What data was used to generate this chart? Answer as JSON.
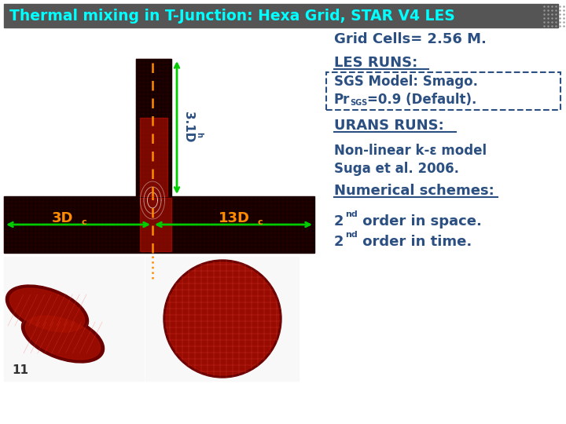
{
  "title": "Thermal mixing in T-Junction: Hexa Grid, STAR V4 LES",
  "title_color": "#00FFFF",
  "title_bg": "#555555",
  "bg_color": "#FFFFFF",
  "grid_cells_text": "Grid Cells= 2.56 M.",
  "les_runs_text": "LES RUNS:",
  "sgs_line1": "SGS Model: Smago.",
  "sgs_line2b": "=0.9 (Default).",
  "urans_text": "URANS RUNS:",
  "nonlinear_line1": "Non-linear k-ε model",
  "nonlinear_line2": "Suga et al. 2006.",
  "numerical_text": "Numerical schemes:",
  "order_sup": "nd",
  "order_end1": " order in space.",
  "order_end2": " order in time.",
  "label_3Dc": "3D",
  "label_3Dc_sub": "c",
  "label_13Dc": "13D",
  "label_13Dc_sub": "c",
  "label_31Dh": "3.1D",
  "label_31Dh_sub": "h",
  "text_color": "#2B4F81",
  "orange_color": "#FF8C00",
  "green_color": "#00CC00",
  "slide_num": "11"
}
